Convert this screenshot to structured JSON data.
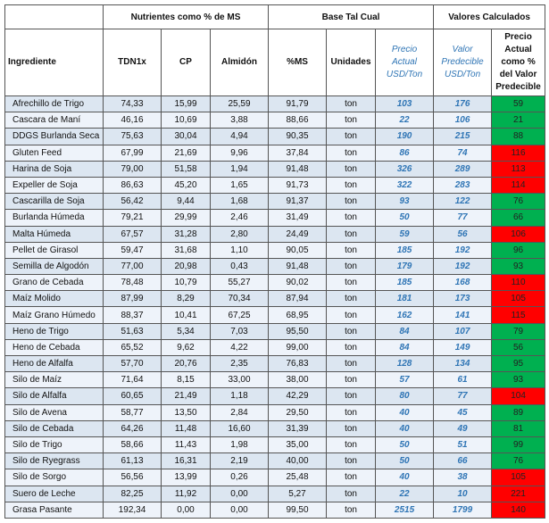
{
  "table": {
    "groups": [
      "Nutrientes como % de MS",
      "Base Tal Cual",
      "Valores Calculados"
    ],
    "columns": [
      "Ingrediente",
      "TDN1x",
      "CP",
      "Almidón",
      "%MS",
      "Unidades",
      "Precio Actual USD/Ton",
      "Valor Predecible USD/Ton",
      "Precio Actual como % del Valor Predecible"
    ],
    "rows": [
      [
        "Afrechillo de Trigo",
        "74,33",
        "15,99",
        "25,59",
        "91,79",
        "ton",
        "103",
        "176",
        "59"
      ],
      [
        "Cascara de Maní",
        "46,16",
        "10,69",
        "3,88",
        "88,66",
        "ton",
        "22",
        "106",
        "21"
      ],
      [
        "DDGS Burlanda Seca",
        "75,63",
        "30,04",
        "4,94",
        "90,35",
        "ton",
        "190",
        "215",
        "88"
      ],
      [
        "Gluten Feed",
        "67,99",
        "21,69",
        "9,96",
        "37,84",
        "ton",
        "86",
        "74",
        "116"
      ],
      [
        "Harina de Soja",
        "79,00",
        "51,58",
        "1,94",
        "91,48",
        "ton",
        "326",
        "289",
        "113"
      ],
      [
        "Expeller de Soja",
        "86,63",
        "45,20",
        "1,65",
        "91,73",
        "ton",
        "322",
        "283",
        "114"
      ],
      [
        "Cascarilla de Soja",
        "56,42",
        "9,44",
        "1,68",
        "91,37",
        "ton",
        "93",
        "122",
        "76"
      ],
      [
        "Burlanda Húmeda",
        "79,21",
        "29,99",
        "2,46",
        "31,49",
        "ton",
        "50",
        "77",
        "66"
      ],
      [
        "Malta Húmeda",
        "67,57",
        "31,28",
        "2,80",
        "24,49",
        "ton",
        "59",
        "56",
        "106"
      ],
      [
        "Pellet de Girasol",
        "59,47",
        "31,68",
        "1,10",
        "90,05",
        "ton",
        "185",
        "192",
        "96"
      ],
      [
        "Semilla de Algodón",
        "77,00",
        "20,98",
        "0,43",
        "91,48",
        "ton",
        "179",
        "192",
        "93"
      ],
      [
        "Grano de Cebada",
        "78,48",
        "10,79",
        "55,27",
        "90,02",
        "ton",
        "185",
        "168",
        "110"
      ],
      [
        "Maíz Molido",
        "87,99",
        "8,29",
        "70,34",
        "87,94",
        "ton",
        "181",
        "173",
        "105"
      ],
      [
        "Maíz Grano Húmedo",
        "88,37",
        "10,41",
        "67,25",
        "68,95",
        "ton",
        "162",
        "141",
        "115"
      ],
      [
        "Heno de Trigo",
        "51,63",
        "5,34",
        "7,03",
        "95,50",
        "ton",
        "84",
        "107",
        "79"
      ],
      [
        "Heno de Cebada",
        "65,52",
        "9,62",
        "4,22",
        "99,00",
        "ton",
        "84",
        "149",
        "56"
      ],
      [
        "Heno de Alfalfa",
        "57,70",
        "20,76",
        "2,35",
        "76,83",
        "ton",
        "128",
        "134",
        "95"
      ],
      [
        "Silo de Maíz",
        "71,64",
        "8,15",
        "33,00",
        "38,00",
        "ton",
        "57",
        "61",
        "93"
      ],
      [
        "Silo de Alfalfa",
        "60,65",
        "21,49",
        "1,18",
        "42,29",
        "ton",
        "80",
        "77",
        "104"
      ],
      [
        "Silo de Avena",
        "58,77",
        "13,50",
        "2,84",
        "29,50",
        "ton",
        "40",
        "45",
        "89"
      ],
      [
        "Silo de Cebada",
        "64,26",
        "11,48",
        "16,60",
        "31,39",
        "ton",
        "40",
        "49",
        "81"
      ],
      [
        "Silo de Trigo",
        "58,66",
        "11,43",
        "1,98",
        "35,00",
        "ton",
        "50",
        "51",
        "99"
      ],
      [
        "Silo de Ryegrass",
        "61,13",
        "16,31",
        "2,19",
        "40,00",
        "ton",
        "50",
        "66",
        "76"
      ],
      [
        "Silo de Sorgo",
        "56,56",
        "13,99",
        "0,26",
        "25,48",
        "ton",
        "40",
        "38",
        "105"
      ],
      [
        "Suero de Leche",
        "82,25",
        "11,92",
        "0,00",
        "5,27",
        "ton",
        "22",
        "10",
        "221"
      ],
      [
        "Grasa Pasante",
        "192,34",
        "0,00",
        "0,00",
        "99,50",
        "ton",
        "2515",
        "1799",
        "140"
      ]
    ],
    "status_colors": [
      "#00b050",
      "#00b050",
      "#00b050",
      "#ff0000",
      "#ff0000",
      "#ff0000",
      "#00b050",
      "#00b050",
      "#ff0000",
      "#00b050",
      "#00b050",
      "#ff0000",
      "#ff0000",
      "#ff0000",
      "#00b050",
      "#00b050",
      "#00b050",
      "#00b050",
      "#ff0000",
      "#00b050",
      "#00b050",
      "#00b050",
      "#00b050",
      "#ff0000",
      "#ff0000",
      "#ff0000"
    ]
  }
}
